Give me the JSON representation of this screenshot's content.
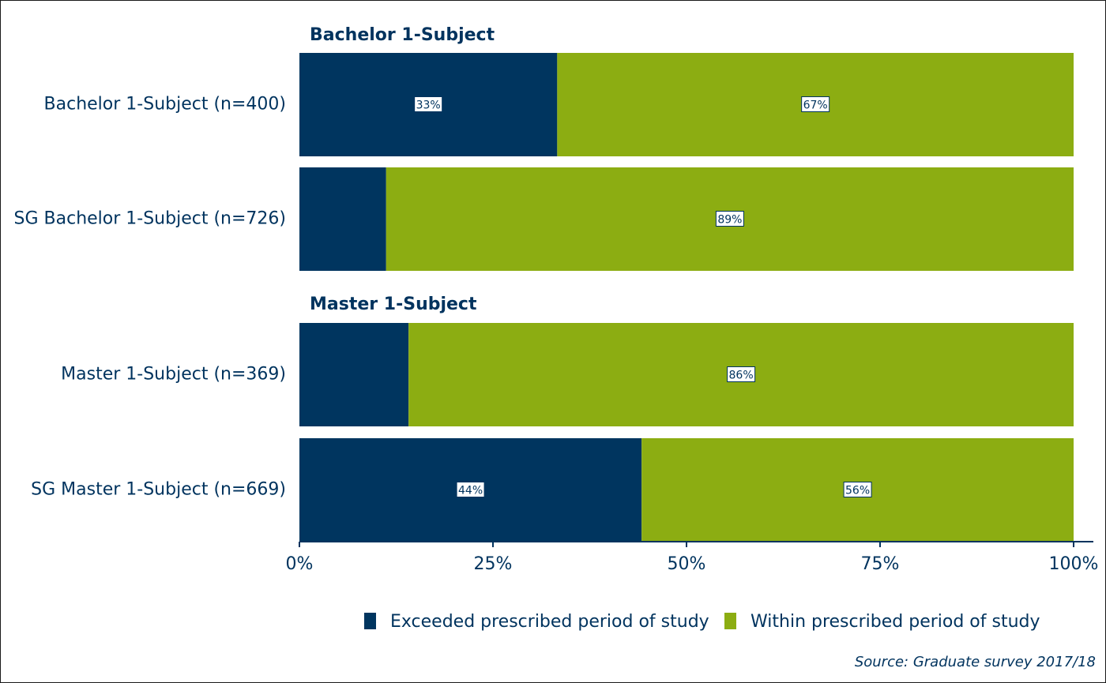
{
  "chart_data": {
    "type": "bar",
    "orientation": "horizontal",
    "stacked": true,
    "xlim": [
      0,
      100
    ],
    "x_ticks": [
      "0%",
      "25%",
      "50%",
      "75%",
      "100%"
    ],
    "groups": [
      {
        "title": "Bachelor 1-Subject",
        "categories": [
          "Bachelor 1-Subject (n=400)",
          "SG Bachelor 1-Subject (n=726)"
        ]
      },
      {
        "title": "Master 1-Subject",
        "categories": [
          "Master 1-Subject (n=369)",
          "SG Master 1-Subject (n=669)"
        ]
      }
    ],
    "series": [
      {
        "name": "Exceeded prescribed period of study",
        "color": "#00355f",
        "values": [
          33.3,
          11.2,
          14.1,
          44.2
        ],
        "labels": [
          "33%",
          "",
          "",
          "44%"
        ]
      },
      {
        "name": "Within prescribed period of study",
        "color": "#8cad12",
        "values": [
          66.7,
          88.8,
          85.9,
          55.8
        ],
        "labels": [
          "67%",
          "89%",
          "86%",
          "56%"
        ]
      }
    ],
    "legend_position": "bottom-right",
    "grid": false,
    "source": "Source: Graduate survey 2017/18"
  }
}
